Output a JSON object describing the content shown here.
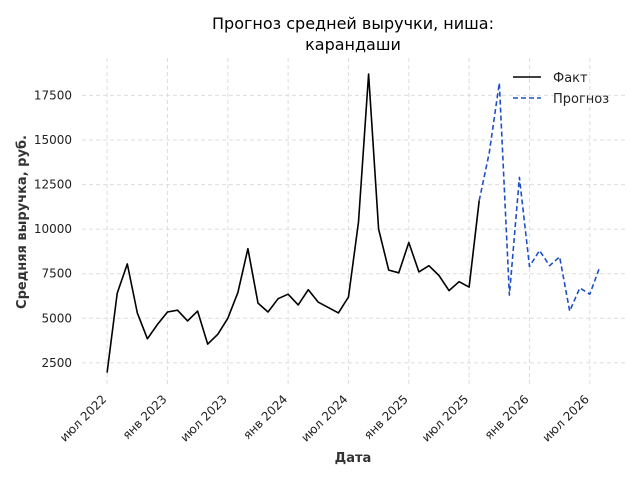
{
  "chart_data": {
    "type": "line",
    "title_lines": [
      "Прогноз средней выручки, ниша:",
      "карандаши"
    ],
    "xlabel": "Дата",
    "ylabel": "Средняя выручка, руб.",
    "x_ticks": [
      "июл 2022",
      "янв 2023",
      "июл 2023",
      "янв 2024",
      "июл 2024",
      "янв 2025",
      "июл 2025",
      "янв 2026",
      "июл 2026"
    ],
    "y_ticks": [
      2500,
      5000,
      7500,
      10000,
      12500,
      15000,
      17500
    ],
    "ylim": [
      1200,
      19600
    ],
    "xlim": [
      -2.5,
      51.5
    ],
    "grid": true,
    "legend_position": "top-right",
    "colors": {
      "fact": "#000000",
      "forecast": "#1f4fc8",
      "grid": "#dddddd"
    },
    "series": [
      {
        "name": "Факт",
        "style": "solid",
        "x": [
          0,
          1,
          2,
          3,
          4,
          5,
          6,
          7,
          8,
          9,
          10,
          11,
          12,
          13,
          14,
          15,
          16,
          17,
          18,
          19,
          20,
          21,
          22,
          23,
          24,
          25,
          26,
          27,
          28,
          29,
          30,
          31,
          32,
          33,
          34,
          35,
          36,
          37
        ],
        "values": [
          1950,
          6400,
          8050,
          5300,
          3850,
          4650,
          5350,
          5450,
          4850,
          5400,
          3550,
          4100,
          5000,
          6450,
          8900,
          5850,
          5350,
          6100,
          6350,
          5750,
          6600,
          5900,
          5600,
          5300,
          6200,
          10400,
          18700,
          10000,
          7700,
          7550,
          9250,
          7600,
          7950,
          7400,
          6550,
          7050,
          6750,
          11600
        ]
      },
      {
        "name": "Прогноз",
        "style": "dashed",
        "x": [
          37,
          38,
          39,
          40,
          41,
          42,
          43,
          44,
          45,
          46,
          47,
          48,
          49
        ],
        "values": [
          11600,
          14300,
          18200,
          6300,
          12900,
          7900,
          8800,
          7950,
          8450,
          5400,
          6700,
          6350,
          7900
        ]
      }
    ]
  }
}
